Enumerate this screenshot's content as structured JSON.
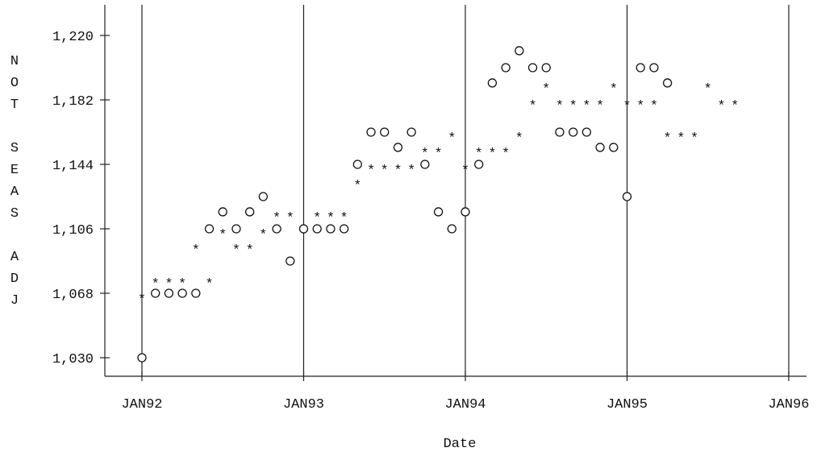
{
  "chart_data": {
    "type": "scatter",
    "style": "ascii line-printer plot",
    "xlabel": "Date",
    "ylabel": "NOT SEAS ADJ",
    "x_ticks": [
      "JAN92",
      "JAN93",
      "JAN94",
      "JAN95",
      "JAN96"
    ],
    "y_ticks": [
      "1,220",
      "1,182",
      "1,144",
      "1,106",
      "1,068",
      "1,030"
    ],
    "xlim": [
      "1992-01",
      "1996-01"
    ],
    "ylim": [
      1030,
      1220
    ],
    "grid": "vertical reference lines at each JAN tick",
    "series": [
      {
        "symbol": "*",
        "points": [
          [
            "1992-01",
            1068
          ],
          [
            "1992-02",
            1077
          ],
          [
            "1992-03",
            1077
          ],
          [
            "1992-04",
            1077
          ],
          [
            "1992-05",
            1097
          ],
          [
            "1992-06",
            1077
          ],
          [
            "1992-07",
            1106
          ],
          [
            "1992-08",
            1097
          ],
          [
            "1992-09",
            1097
          ],
          [
            "1992-10",
            1106
          ],
          [
            "1992-11",
            1116
          ],
          [
            "1992-12",
            1116
          ],
          [
            "1993-01",
            1106
          ],
          [
            "1993-02",
            1116
          ],
          [
            "1993-03",
            1116
          ],
          [
            "1993-04",
            1116
          ],
          [
            "1993-05",
            1135
          ],
          [
            "1993-06",
            1144
          ],
          [
            "1993-07",
            1144
          ],
          [
            "1993-08",
            1144
          ],
          [
            "1993-09",
            1144
          ],
          [
            "1993-10",
            1154
          ],
          [
            "1993-11",
            1154
          ],
          [
            "1993-12",
            1163
          ],
          [
            "1994-01",
            1144
          ],
          [
            "1994-02",
            1154
          ],
          [
            "1994-03",
            1154
          ],
          [
            "1994-04",
            1154
          ],
          [
            "1994-05",
            1163
          ],
          [
            "1994-06",
            1182
          ],
          [
            "1994-07",
            1192
          ],
          [
            "1994-08",
            1182
          ],
          [
            "1994-09",
            1182
          ],
          [
            "1994-10",
            1182
          ],
          [
            "1994-11",
            1182
          ],
          [
            "1994-12",
            1192
          ],
          [
            "1995-01",
            1182
          ],
          [
            "1995-02",
            1182
          ],
          [
            "1995-03",
            1182
          ],
          [
            "1995-04",
            1163
          ],
          [
            "1995-05",
            1163
          ],
          [
            "1995-06",
            1163
          ],
          [
            "1995-07",
            1192
          ],
          [
            "1995-08",
            1182
          ],
          [
            "1995-09",
            1182
          ]
        ]
      },
      {
        "symbol": "o",
        "points": [
          [
            "1992-01",
            1030
          ],
          [
            "1992-02",
            1068
          ],
          [
            "1992-03",
            1068
          ],
          [
            "1992-04",
            1068
          ],
          [
            "1992-05",
            1068
          ],
          [
            "1992-06",
            1106
          ],
          [
            "1992-07",
            1116
          ],
          [
            "1992-08",
            1106
          ],
          [
            "1992-09",
            1116
          ],
          [
            "1992-10",
            1125
          ],
          [
            "1992-11",
            1106
          ],
          [
            "1992-12",
            1087
          ],
          [
            "1993-01",
            1106
          ],
          [
            "1993-02",
            1106
          ],
          [
            "1993-03",
            1106
          ],
          [
            "1993-04",
            1106
          ],
          [
            "1993-05",
            1144
          ],
          [
            "1993-06",
            1163
          ],
          [
            "1993-07",
            1163
          ],
          [
            "1993-08",
            1154
          ],
          [
            "1993-09",
            1163
          ],
          [
            "1993-10",
            1144
          ],
          [
            "1993-11",
            1116
          ],
          [
            "1993-12",
            1106
          ],
          [
            "1994-01",
            1116
          ],
          [
            "1994-02",
            1144
          ],
          [
            "1994-03",
            1192
          ],
          [
            "1994-04",
            1201
          ],
          [
            "1994-05",
            1211
          ],
          [
            "1994-06",
            1201
          ],
          [
            "1994-07",
            1201
          ],
          [
            "1994-08",
            1163
          ],
          [
            "1994-09",
            1163
          ],
          [
            "1994-10",
            1163
          ],
          [
            "1994-11",
            1154
          ],
          [
            "1994-12",
            1154
          ],
          [
            "1995-01",
            1125
          ],
          [
            "1995-02",
            1201
          ],
          [
            "1995-03",
            1201
          ],
          [
            "1995-04",
            1192
          ]
        ]
      }
    ]
  }
}
